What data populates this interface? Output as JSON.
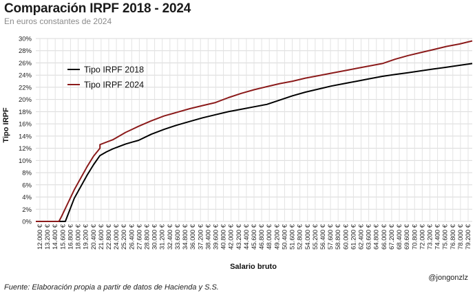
{
  "header": {
    "title": "Comparación IRPF 2018 - 2024",
    "subtitle": "En euros constantes de 2024"
  },
  "footer": {
    "source": "Fuente: Elaboración propia a partir de datos de Hacienda y S.S.",
    "credit": "@jongonzlz"
  },
  "chart_data": {
    "type": "line",
    "title": "Comparación IRPF 2018 - 2024",
    "subtitle": "En euros constantes de 2024",
    "xlabel": "Salario bruto",
    "ylabel": "Tipo IRPF",
    "ylim": [
      0,
      30
    ],
    "y_ticks": [
      "0%",
      "2%",
      "4%",
      "6%",
      "8%",
      "10%",
      "12%",
      "14%",
      "16%",
      "18%",
      "20%",
      "22%",
      "24%",
      "26%",
      "28%",
      "30%"
    ],
    "x_range": [
      12000,
      80000
    ],
    "x_tick_labels": [
      "12.000 €",
      "13.200 €",
      "14.400 €",
      "15.600 €",
      "16.800 €",
      "18.000 €",
      "19.200 €",
      "20.400 €",
      "21.600 €",
      "22.800 €",
      "24.000 €",
      "25.200 €",
      "26.400 €",
      "27.600 €",
      "28.800 €",
      "30.000 €",
      "31.200 €",
      "32.400 €",
      "33.600 €",
      "34.800 €",
      "36.000 €",
      "37.200 €",
      "38.400 €",
      "39.600 €",
      "40.800 €",
      "42.000 €",
      "43.200 €",
      "44.400 €",
      "45.600 €",
      "46.800 €",
      "48.000 €",
      "49.200 €",
      "50.400 €",
      "51.600 €",
      "52.800 €",
      "54.000 €",
      "55.200 €",
      "56.400 €",
      "57.600 €",
      "58.800 €",
      "60.000 €",
      "61.200 €",
      "62.400 €",
      "63.600 €",
      "64.800 €",
      "66.000 €",
      "67.200 €",
      "68.400 €",
      "69.600 €",
      "70.800 €",
      "72.000 €",
      "73.200 €",
      "74.400 €",
      "75.600 €",
      "76.800 €",
      "78.000 €",
      "79.200 €"
    ],
    "grid": true,
    "legend_position": "top-left",
    "series": [
      {
        "name": "Tipo IRPF 2018",
        "color": "#000000",
        "x": [
          12000,
          14000,
          16000,
          16600,
          18000,
          20000,
          21000,
          22000,
          23000,
          24000,
          25000,
          26000,
          27000,
          28000,
          30000,
          32000,
          34000,
          36000,
          38000,
          40000,
          42000,
          44000,
          46000,
          48000,
          50000,
          52000,
          54000,
          56000,
          58000,
          60000,
          62000,
          64000,
          66000,
          68000,
          70000,
          72000,
          74000,
          76000,
          78000,
          80000
        ],
        "y": [
          0,
          0,
          0,
          0.0,
          3.8,
          7.6,
          9.3,
          10.8,
          11.4,
          11.9,
          12.3,
          12.7,
          13.0,
          13.3,
          14.3,
          15.1,
          15.8,
          16.4,
          17.0,
          17.5,
          18.0,
          18.4,
          18.8,
          19.2,
          19.9,
          20.6,
          21.2,
          21.7,
          22.2,
          22.6,
          23.0,
          23.4,
          23.8,
          24.1,
          24.4,
          24.7,
          25.0,
          25.3,
          25.6,
          25.9
        ]
      },
      {
        "name": "Tipo IRPF 2024",
        "color": "#8b1a1a",
        "x": [
          12000,
          14000,
          15600,
          16000,
          18000,
          20000,
          21000,
          21999,
          22000,
          23000,
          24000,
          25000,
          26000,
          27000,
          28000,
          30000,
          32000,
          34000,
          36000,
          38000,
          40000,
          42000,
          44000,
          46000,
          48000,
          50000,
          52000,
          54000,
          56000,
          58000,
          60000,
          62000,
          64000,
          66000,
          68000,
          70000,
          72000,
          74000,
          76000,
          78000,
          80000
        ],
        "y": [
          0,
          0,
          0,
          0.8,
          5.2,
          9.0,
          10.7,
          12.0,
          12.6,
          13.0,
          13.4,
          14.0,
          14.6,
          15.1,
          15.6,
          16.5,
          17.3,
          17.9,
          18.5,
          19.0,
          19.5,
          20.3,
          21.0,
          21.6,
          22.1,
          22.6,
          23.0,
          23.5,
          23.9,
          24.3,
          24.7,
          25.1,
          25.5,
          25.9,
          26.6,
          27.2,
          27.7,
          28.2,
          28.7,
          29.1,
          29.6
        ]
      }
    ]
  }
}
